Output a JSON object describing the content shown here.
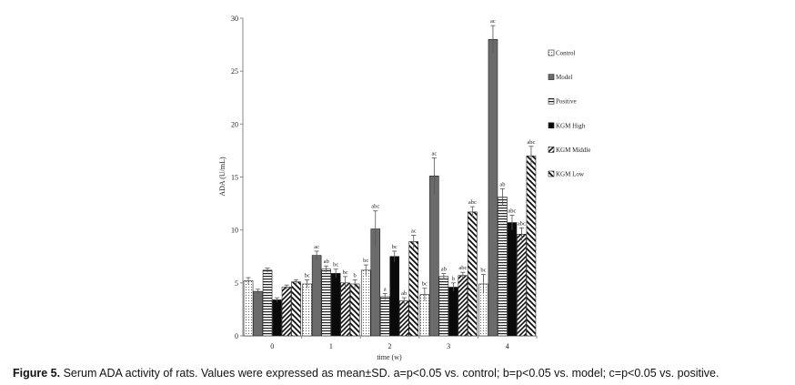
{
  "chart_data": {
    "type": "bar",
    "ylabel": "ADA (U/mL)",
    "xlabel": "time (w)",
    "ylim": [
      0,
      30
    ],
    "yticks": [
      0,
      5,
      10,
      15,
      20,
      25,
      30
    ],
    "categories": [
      "0",
      "1",
      "2",
      "3",
      "4"
    ],
    "legend_position": "right",
    "series": [
      {
        "name": "Control",
        "pattern": "dots",
        "values": [
          5.2,
          4.9,
          6.2,
          3.9,
          4.9
        ],
        "errors": [
          0.3,
          0.4,
          0.5,
          0.6,
          0.9
        ],
        "labels": [
          "",
          "bc",
          "bc",
          "bc",
          "bc"
        ]
      },
      {
        "name": "Model",
        "pattern": "solid-gray",
        "values": [
          4.2,
          7.6,
          10.1,
          15.1,
          28.0
        ],
        "errors": [
          0.2,
          0.4,
          1.7,
          1.7,
          1.3
        ],
        "labels": [
          "",
          "ac",
          "abc",
          "ac",
          "ac"
        ]
      },
      {
        "name": "Positive",
        "pattern": "hlines",
        "values": [
          6.2,
          6.3,
          3.7,
          5.6,
          13.1
        ],
        "errors": [
          0.2,
          0.3,
          0.3,
          0.3,
          0.8
        ],
        "labels": [
          "",
          "ab",
          "a",
          "ab",
          "ab"
        ]
      },
      {
        "name": "KGM High",
        "pattern": "solid-black",
        "values": [
          3.4,
          5.9,
          7.5,
          4.6,
          10.7
        ],
        "errors": [
          0.2,
          0.4,
          0.5,
          0.4,
          0.7
        ],
        "labels": [
          "",
          "bc",
          "bc",
          "b",
          "abc"
        ]
      },
      {
        "name": "KGM Middle",
        "pattern": "diag-right",
        "values": [
          4.6,
          5.0,
          3.3,
          5.7,
          9.6
        ],
        "errors": [
          0.2,
          0.6,
          0.3,
          0.3,
          0.6
        ],
        "labels": [
          "",
          "bc",
          "ab",
          "abc",
          "abc"
        ]
      },
      {
        "name": "KGM Low",
        "pattern": "diag-left",
        "values": [
          5.1,
          4.9,
          8.9,
          11.7,
          17.0
        ],
        "errors": [
          0.2,
          0.4,
          0.6,
          0.5,
          0.9
        ],
        "labels": [
          "",
          "b",
          "ac",
          "abc",
          "abc"
        ]
      }
    ]
  },
  "caption": {
    "label": "Figure 5.",
    "text": " Serum ADA activity of rats. Values were expressed as mean±SD. a=p<0.05 vs. control; b=p<0.05 vs. model; c=p<0.05 vs. positive."
  }
}
